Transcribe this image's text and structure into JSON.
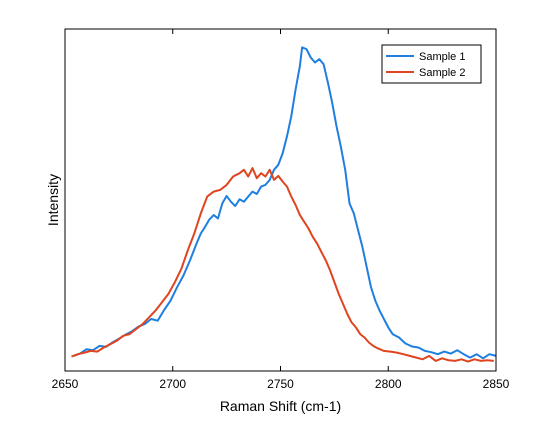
{
  "chart_data": {
    "type": "line",
    "xlabel": "Raman Shift (cm-1)",
    "ylabel": "Intensity",
    "xlim": [
      2650,
      2850
    ],
    "ylim": [
      0,
      1.02
    ],
    "xticks": [
      2650,
      2700,
      2750,
      2800,
      2850
    ],
    "yticks_shown": false,
    "grid": false,
    "legend": {
      "placement": "top-right"
    },
    "series": [
      {
        "name": "Sample 1",
        "color": "#1f7fe0",
        "points": [
          [
            2654,
            0.045
          ],
          [
            2657,
            0.052
          ],
          [
            2660,
            0.065
          ],
          [
            2663,
            0.062
          ],
          [
            2666,
            0.075
          ],
          [
            2669,
            0.072
          ],
          [
            2672,
            0.085
          ],
          [
            2675,
            0.096
          ],
          [
            2678,
            0.108
          ],
          [
            2681,
            0.118
          ],
          [
            2684,
            0.132
          ],
          [
            2687,
            0.14
          ],
          [
            2690,
            0.155
          ],
          [
            2693,
            0.15
          ],
          [
            2696,
            0.182
          ],
          [
            2699,
            0.21
          ],
          [
            2702,
            0.25
          ],
          [
            2705,
            0.285
          ],
          [
            2708,
            0.33
          ],
          [
            2711,
            0.38
          ],
          [
            2713,
            0.41
          ],
          [
            2715,
            0.43
          ],
          [
            2717,
            0.452
          ],
          [
            2719,
            0.465
          ],
          [
            2721,
            0.455
          ],
          [
            2723,
            0.5
          ],
          [
            2725,
            0.522
          ],
          [
            2727,
            0.505
          ],
          [
            2729,
            0.492
          ],
          [
            2731,
            0.512
          ],
          [
            2733,
            0.505
          ],
          [
            2735,
            0.52
          ],
          [
            2737,
            0.535
          ],
          [
            2739,
            0.528
          ],
          [
            2741,
            0.55
          ],
          [
            2743,
            0.555
          ],
          [
            2745,
            0.57
          ],
          [
            2747,
            0.6
          ],
          [
            2749,
            0.615
          ],
          [
            2751,
            0.65
          ],
          [
            2753,
            0.7
          ],
          [
            2755,
            0.76
          ],
          [
            2757,
            0.84
          ],
          [
            2759,
            0.91
          ],
          [
            2760,
            0.965
          ],
          [
            2762,
            0.96
          ],
          [
            2764,
            0.935
          ],
          [
            2766,
            0.92
          ],
          [
            2768,
            0.93
          ],
          [
            2770,
            0.915
          ],
          [
            2772,
            0.86
          ],
          [
            2774,
            0.8
          ],
          [
            2776,
            0.73
          ],
          [
            2778,
            0.67
          ],
          [
            2780,
            0.6
          ],
          [
            2782,
            0.5
          ],
          [
            2784,
            0.47
          ],
          [
            2786,
            0.42
          ],
          [
            2788,
            0.37
          ],
          [
            2790,
            0.31
          ],
          [
            2792,
            0.25
          ],
          [
            2794,
            0.21
          ],
          [
            2796,
            0.18
          ],
          [
            2798,
            0.155
          ],
          [
            2800,
            0.13
          ],
          [
            2802,
            0.11
          ],
          [
            2805,
            0.1
          ],
          [
            2808,
            0.082
          ],
          [
            2811,
            0.073
          ],
          [
            2814,
            0.07
          ],
          [
            2817,
            0.06
          ],
          [
            2820,
            0.056
          ],
          [
            2823,
            0.05
          ],
          [
            2826,
            0.058
          ],
          [
            2829,
            0.052
          ],
          [
            2832,
            0.062
          ],
          [
            2835,
            0.05
          ],
          [
            2838,
            0.04
          ],
          [
            2841,
            0.05
          ],
          [
            2844,
            0.038
          ],
          [
            2847,
            0.05
          ],
          [
            2850,
            0.045
          ]
        ]
      },
      {
        "name": "Sample 2",
        "color": "#e0441f",
        "points": [
          [
            2653,
            0.043
          ],
          [
            2656,
            0.05
          ],
          [
            2659,
            0.055
          ],
          [
            2662,
            0.06
          ],
          [
            2665,
            0.058
          ],
          [
            2668,
            0.07
          ],
          [
            2671,
            0.08
          ],
          [
            2674,
            0.09
          ],
          [
            2677,
            0.105
          ],
          [
            2680,
            0.11
          ],
          [
            2683,
            0.125
          ],
          [
            2686,
            0.14
          ],
          [
            2689,
            0.16
          ],
          [
            2692,
            0.18
          ],
          [
            2695,
            0.205
          ],
          [
            2698,
            0.23
          ],
          [
            2701,
            0.265
          ],
          [
            2704,
            0.305
          ],
          [
            2707,
            0.36
          ],
          [
            2710,
            0.41
          ],
          [
            2713,
            0.47
          ],
          [
            2716,
            0.52
          ],
          [
            2719,
            0.535
          ],
          [
            2722,
            0.54
          ],
          [
            2725,
            0.555
          ],
          [
            2728,
            0.58
          ],
          [
            2731,
            0.59
          ],
          [
            2733,
            0.6
          ],
          [
            2735,
            0.58
          ],
          [
            2737,
            0.605
          ],
          [
            2739,
            0.575
          ],
          [
            2741,
            0.59
          ],
          [
            2743,
            0.58
          ],
          [
            2745,
            0.6
          ],
          [
            2747,
            0.57
          ],
          [
            2749,
            0.582
          ],
          [
            2751,
            0.565
          ],
          [
            2753,
            0.55
          ],
          [
            2755,
            0.52
          ],
          [
            2757,
            0.495
          ],
          [
            2759,
            0.465
          ],
          [
            2761,
            0.445
          ],
          [
            2763,
            0.425
          ],
          [
            2765,
            0.4
          ],
          [
            2767,
            0.38
          ],
          [
            2769,
            0.355
          ],
          [
            2771,
            0.33
          ],
          [
            2773,
            0.3
          ],
          [
            2775,
            0.265
          ],
          [
            2777,
            0.23
          ],
          [
            2779,
            0.2
          ],
          [
            2781,
            0.17
          ],
          [
            2783,
            0.145
          ],
          [
            2785,
            0.13
          ],
          [
            2787,
            0.11
          ],
          [
            2789,
            0.1
          ],
          [
            2791,
            0.085
          ],
          [
            2793,
            0.075
          ],
          [
            2795,
            0.068
          ],
          [
            2798,
            0.06
          ],
          [
            2801,
            0.058
          ],
          [
            2804,
            0.055
          ],
          [
            2807,
            0.05
          ],
          [
            2810,
            0.045
          ],
          [
            2813,
            0.04
          ],
          [
            2816,
            0.035
          ],
          [
            2819,
            0.045
          ],
          [
            2822,
            0.03
          ],
          [
            2825,
            0.038
          ],
          [
            2828,
            0.032
          ],
          [
            2831,
            0.03
          ],
          [
            2834,
            0.035
          ],
          [
            2837,
            0.028
          ],
          [
            2840,
            0.035
          ],
          [
            2843,
            0.03
          ],
          [
            2846,
            0.032
          ],
          [
            2849,
            0.03
          ]
        ]
      }
    ]
  }
}
